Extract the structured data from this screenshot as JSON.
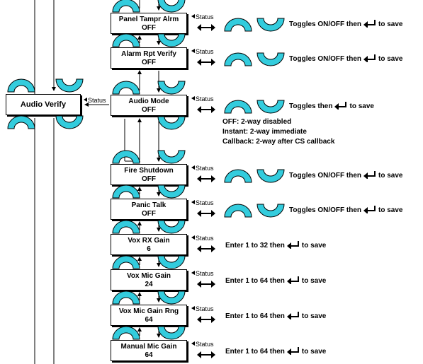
{
  "main_menu": {
    "label": "Audio Verify",
    "status_label": "Status"
  },
  "menu_items": [
    {
      "id": "panel-tamper",
      "title": "Panel Tampr Alrm",
      "value": "OFF",
      "status_label": "Status",
      "description_pre": "Toggles ON/OFF then",
      "description_post": "to save",
      "has_arrow_keys": true
    },
    {
      "id": "alarm-rpt-verify",
      "title": "Alarm Rpt Verify",
      "value": "OFF",
      "status_label": "Status",
      "description_pre": "Toggles ON/OFF then",
      "description_post": "to save",
      "has_arrow_keys": true
    },
    {
      "id": "audio-mode",
      "title": "Audio Mode",
      "value": "OFF",
      "status_label": "Status",
      "description_pre": "Toggles then",
      "description_post": "to save",
      "has_arrow_keys": true
    },
    {
      "id": "fire-shutdown",
      "title": "Fire Shutdown",
      "value": "OFF",
      "status_label": "Status",
      "description_pre": "Toggles ON/OFF then",
      "description_post": "to save",
      "has_arrow_keys": true
    },
    {
      "id": "panic-talk",
      "title": "Panic Talk",
      "value": "OFF",
      "status_label": "Status",
      "description_pre": "Toggles ON/OFF then",
      "description_post": "to save",
      "has_arrow_keys": true
    },
    {
      "id": "vox-rx-gain",
      "title": "Vox RX Gain",
      "value": "6",
      "status_label": "Status",
      "description_pre": "Enter 1 to 32 then",
      "description_post": "to save",
      "has_arrow_keys": false
    },
    {
      "id": "vox-mic-gain",
      "title": "Vox Mic Gain",
      "value": "24",
      "status_label": "Status",
      "description_pre": "Enter 1 to 64 then",
      "description_post": "to save",
      "has_arrow_keys": false
    },
    {
      "id": "vox-mic-gain-rng",
      "title": "Vox Mic Gain Rng",
      "value": "64",
      "status_label": "Status",
      "description_pre": "Enter 1 to 64 then",
      "description_post": "to save",
      "has_arrow_keys": false
    },
    {
      "id": "manual-mic-gain",
      "title": "Manual Mic Gain",
      "value": "64",
      "status_label": "Status",
      "description_pre": "Enter 1 to 64 then",
      "description_post": "to save",
      "has_arrow_keys": false
    }
  ],
  "audio_mode_notes": [
    "OFF: 2-way disabled",
    "Instant: 2-way immediate",
    "Callback: 2-way after CS callback"
  ],
  "colors": {
    "key_fill": "#33ccdd",
    "outline": "#000000",
    "background": "#ffffff"
  },
  "icons": {
    "up_key": "up-arc-key-icon",
    "down_key": "down-arc-key-icon",
    "enter": "enter-return-icon",
    "status_arrow": "left-arrow-icon",
    "scroll_arrows": "left-right-arrows-icon"
  }
}
